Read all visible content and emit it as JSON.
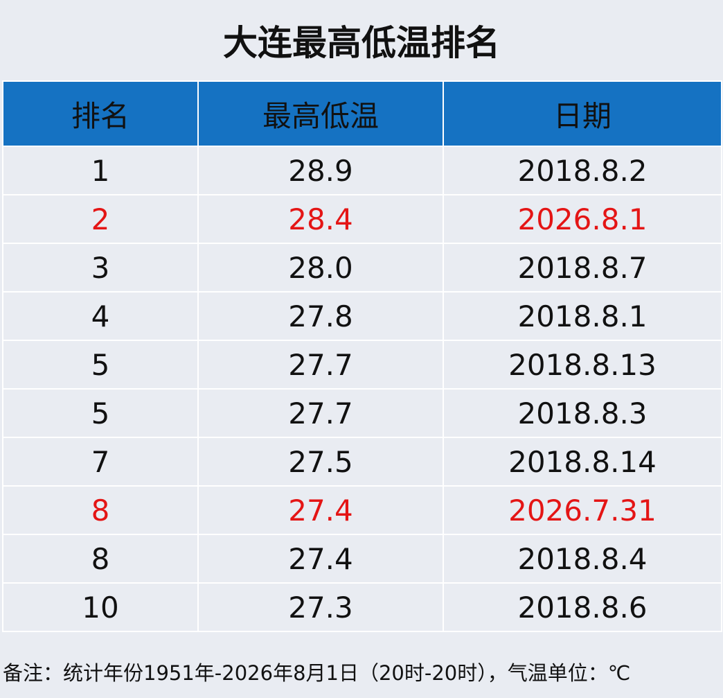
{
  "chart_data": {
    "type": "table",
    "title": "大连最高低温排名",
    "columns": [
      "排名",
      "最高低温",
      "日期"
    ],
    "rows": [
      {
        "rank": "1",
        "temp": "28.9",
        "date": "2018.8.2",
        "highlight": false
      },
      {
        "rank": "2",
        "temp": "28.4",
        "date": "2026.8.1",
        "highlight": true
      },
      {
        "rank": "3",
        "temp": "28.0",
        "date": "2018.8.7",
        "highlight": false
      },
      {
        "rank": "4",
        "temp": "27.8",
        "date": "2018.8.1",
        "highlight": false
      },
      {
        "rank": "5",
        "temp": "27.7",
        "date": "2018.8.13",
        "highlight": false
      },
      {
        "rank": "5",
        "temp": "27.7",
        "date": "2018.8.3",
        "highlight": false
      },
      {
        "rank": "7",
        "temp": "27.5",
        "date": "2018.8.14",
        "highlight": false
      },
      {
        "rank": "8",
        "temp": "27.4",
        "date": "2026.7.31",
        "highlight": true
      },
      {
        "rank": "8",
        "temp": "27.4",
        "date": "2018.8.4",
        "highlight": false
      },
      {
        "rank": "10",
        "temp": "27.3",
        "date": "2018.8.6",
        "highlight": false
      }
    ],
    "note": "备注：统计年份1951年-2026年8月1日（20时-20时），气温单位：℃"
  },
  "colors": {
    "header_bg": "#1572c2",
    "cell_bg": "#e9ecf2",
    "highlight_text": "#e41515",
    "border": "#ffffff"
  }
}
